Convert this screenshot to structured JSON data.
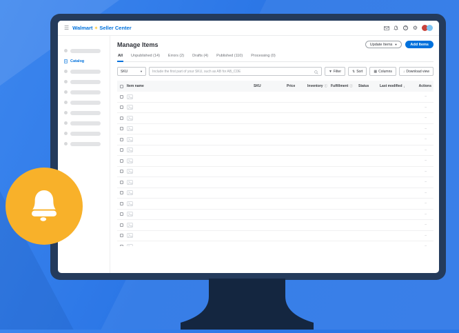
{
  "background": {
    "base_color": "#2b76e6"
  },
  "bell_badge": {
    "color": "#f8b12a"
  },
  "monitor": {
    "frame_color": "#243b5c",
    "stand_color": "#142640"
  },
  "app": {
    "accent_color": "#0071dc",
    "walmart_yellow": "#ffc220",
    "header": {
      "logo": {
        "walmart": "Walmart",
        "spark": "✶",
        "seller_center": "Seller Center"
      },
      "icons": [
        "mail-icon",
        "bell-icon",
        "help-icon",
        "settings-icon"
      ],
      "avatar_colors": [
        "#c8433c",
        "#7fc4f2"
      ]
    },
    "sidebar": {
      "skeleton_items_above": 1,
      "catalog_label": "Catalog",
      "skeleton_items_below": 8
    },
    "main": {
      "title": "Manage Items",
      "update_items_label": "Update Items",
      "add_items_label": "Add Items",
      "tabs": [
        "All",
        "Unpublished (14)",
        "Errors (2)",
        "Drafts (4)",
        "Published (110)",
        "Processing (0)"
      ],
      "active_tab": "All",
      "filter_bar": {
        "field_selector_value": "SKU",
        "search_placeholder": "Include the first part of your SKU, such as AB for AB_CDE",
        "buttons": [
          {
            "label": "Filter",
            "icon": "filter-icon"
          },
          {
            "label": "Sort",
            "icon": "sort-icon"
          },
          {
            "label": "Columns",
            "icon": "columns-icon"
          },
          {
            "label": "Download view",
            "icon": "download-icon"
          }
        ]
      },
      "table": {
        "columns": [
          {
            "label": "Item name"
          },
          {
            "label": "SKU"
          },
          {
            "label": "Price"
          },
          {
            "label": "Inventory",
            "info": true
          },
          {
            "label": "Fulfillment",
            "info": true
          },
          {
            "label": "Status"
          },
          {
            "label": "Last modified",
            "sort": "desc"
          },
          {
            "label": "Actions"
          }
        ],
        "row_count": 15,
        "rows_are_loading_skeletons": true,
        "actions_placeholder": "–"
      }
    }
  }
}
